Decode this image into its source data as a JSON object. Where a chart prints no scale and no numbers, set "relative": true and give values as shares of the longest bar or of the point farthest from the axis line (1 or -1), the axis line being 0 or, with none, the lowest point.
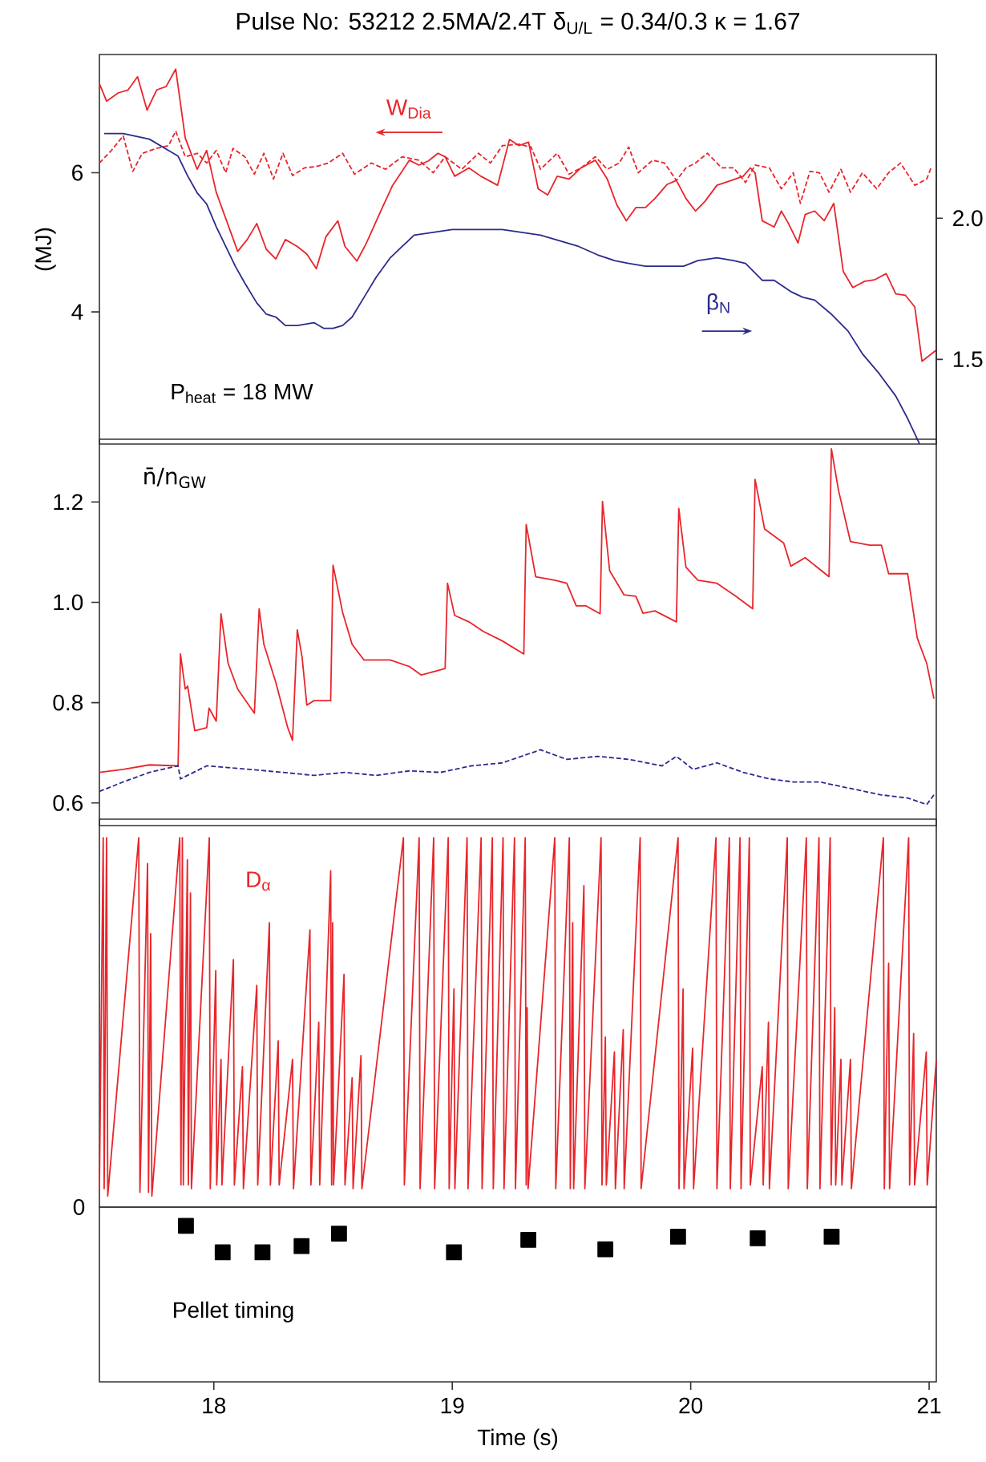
{
  "chart_data": [
    {
      "type": "line",
      "title": "Pulse No: 53212   2.5MA/2.4T  δ$_{U/L}$ = 0.34/0.3  κ = 1.67",
      "ylabel": "(MJ)",
      "xlim": [
        17.52,
        21.03
      ],
      "ylim": [
        2.1,
        7.7
      ],
      "yticks": [
        4,
        6
      ],
      "y2lim": [
        1.2,
        2.58
      ],
      "y2ticks": [
        1.5,
        {
          "value": 2.0,
          "label": "2.0"
        }
      ],
      "tick_labels": "y",
      "annotations": [
        "P$_{heat}$ = 18 MW"
      ],
      "series": [
        {
          "name": "W$_{Dia}$",
          "color": "#e8262b",
          "x": [
            17.52,
            17.55,
            17.6,
            17.64,
            17.68,
            17.72,
            17.76,
            17.8,
            17.84,
            17.88,
            17.93,
            17.97,
            18.01,
            18.1,
            18.14,
            18.18,
            18.22,
            18.26,
            18.3,
            18.35,
            18.39,
            18.43,
            18.47,
            18.52,
            18.55,
            18.6,
            18.64,
            18.7,
            18.75,
            18.82,
            18.86,
            18.9,
            18.94,
            18.97,
            19.01,
            19.07,
            19.12,
            19.19,
            19.24,
            19.28,
            19.32,
            19.36,
            19.4,
            19.44,
            19.49,
            19.54,
            19.6,
            19.65,
            19.69,
            19.73,
            19.77,
            19.81,
            19.85,
            19.9,
            19.94,
            19.98,
            20.02,
            20.06,
            20.11,
            20.17,
            20.22,
            20.25,
            20.27,
            20.3,
            20.35,
            20.38,
            20.41,
            20.45,
            20.48,
            20.52,
            20.56,
            20.6,
            20.64,
            20.68,
            20.73,
            20.77,
            20.82,
            20.86,
            20.9,
            20.94,
            20.97,
            21.03
          ],
          "values": [
            7.28,
            7.03,
            7.15,
            7.19,
            7.38,
            6.9,
            7.19,
            7.24,
            7.49,
            6.5,
            6.05,
            6.32,
            5.72,
            4.87,
            5.04,
            5.27,
            4.9,
            4.76,
            5.04,
            4.94,
            4.83,
            4.62,
            5.08,
            5.31,
            4.94,
            4.73,
            4.99,
            5.45,
            5.82,
            6.18,
            6.11,
            6.17,
            6.28,
            6.23,
            5.95,
            6.07,
            5.95,
            5.82,
            6.48,
            6.39,
            6.44,
            5.77,
            5.68,
            5.95,
            5.91,
            6.07,
            6.18,
            5.91,
            5.54,
            5.31,
            5.5,
            5.5,
            5.63,
            5.83,
            5.89,
            5.63,
            5.45,
            5.59,
            5.82,
            5.89,
            5.95,
            6.07,
            6.0,
            5.31,
            5.22,
            5.45,
            5.27,
            4.99,
            5.4,
            5.45,
            5.31,
            5.56,
            4.58,
            4.35,
            4.44,
            4.46,
            4.55,
            4.26,
            4.24,
            4.07,
            3.29,
            3.45
          ]
        },
        {
          "color": "#e8262b",
          "line_style": "dashed",
          "x": [
            17.52,
            17.57,
            17.62,
            17.66,
            17.7,
            17.76,
            17.81,
            17.84,
            17.88,
            17.93,
            17.97,
            18.01,
            18.05,
            18.08,
            18.13,
            18.17,
            18.21,
            18.25,
            18.29,
            18.33,
            18.38,
            18.43,
            18.48,
            18.54,
            18.59,
            18.66,
            18.72,
            18.79,
            18.86,
            18.92,
            18.97,
            19.04,
            19.11,
            19.16,
            19.21,
            19.28,
            19.33,
            19.37,
            19.44,
            19.49,
            19.54,
            19.6,
            19.65,
            19.7,
            19.74,
            19.78,
            19.84,
            19.89,
            19.94,
            19.98,
            20.02,
            20.07,
            20.13,
            20.18,
            20.23,
            20.27,
            20.33,
            20.38,
            20.43,
            20.46,
            20.5,
            20.54,
            20.58,
            20.63,
            20.67,
            20.72,
            20.78,
            20.83,
            20.88,
            20.94,
            20.99,
            21.01
          ],
          "values": [
            6.14,
            6.32,
            6.53,
            6.02,
            6.28,
            6.35,
            6.39,
            6.6,
            6.23,
            6.28,
            6.14,
            6.32,
            6.0,
            6.35,
            6.23,
            5.98,
            6.28,
            5.91,
            6.28,
            5.96,
            6.07,
            6.09,
            6.14,
            6.28,
            5.98,
            6.14,
            6.05,
            6.23,
            6.18,
            6.0,
            6.23,
            6.05,
            6.28,
            6.14,
            6.39,
            6.41,
            6.37,
            6.05,
            6.28,
            5.98,
            6.07,
            6.23,
            6.05,
            6.14,
            6.37,
            6.0,
            6.18,
            6.14,
            5.89,
            6.07,
            6.14,
            6.28,
            6.07,
            6.07,
            5.86,
            6.11,
            6.07,
            5.77,
            6.0,
            5.56,
            6.02,
            6.0,
            5.72,
            6.05,
            5.72,
            6.0,
            5.77,
            6.0,
            6.14,
            5.82,
            5.91,
            6.09
          ]
        },
        {
          "name": "β$_{N}$",
          "color": "#2b2b8c",
          "axis": "y2",
          "x": [
            17.54,
            17.62,
            17.73,
            17.81,
            17.85,
            17.89,
            17.93,
            17.97,
            18.01,
            18.05,
            18.09,
            18.13,
            18.18,
            18.22,
            18.26,
            18.3,
            18.35,
            18.42,
            18.46,
            18.5,
            18.54,
            18.58,
            18.63,
            18.68,
            18.74,
            18.79,
            18.84,
            18.92,
            19.0,
            19.11,
            19.21,
            19.29,
            19.37,
            19.45,
            19.53,
            19.61,
            19.68,
            19.74,
            19.81,
            19.9,
            19.97,
            20.03,
            20.11,
            20.18,
            20.23,
            20.3,
            20.35,
            20.42,
            20.47,
            20.52,
            20.59,
            20.66,
            20.72,
            20.79,
            20.86,
            20.91,
            20.96
          ],
          "values": [
            2.3,
            2.3,
            2.28,
            2.24,
            2.22,
            2.15,
            2.09,
            2.05,
            1.97,
            1.9,
            1.83,
            1.77,
            1.7,
            1.66,
            1.65,
            1.62,
            1.62,
            1.63,
            1.61,
            1.61,
            1.62,
            1.65,
            1.72,
            1.79,
            1.86,
            1.9,
            1.94,
            1.95,
            1.96,
            1.96,
            1.96,
            1.95,
            1.94,
            1.92,
            1.9,
            1.87,
            1.85,
            1.84,
            1.83,
            1.83,
            1.83,
            1.85,
            1.86,
            1.85,
            1.84,
            1.78,
            1.78,
            1.74,
            1.72,
            1.71,
            1.66,
            1.6,
            1.52,
            1.45,
            1.37,
            1.29,
            1.2
          ]
        }
      ]
    },
    {
      "type": "line",
      "xlim": [
        17.52,
        21.03
      ],
      "ylim": [
        0.555,
        1.325
      ],
      "yticks": [
        0.6,
        0.8,
        {
          "value": 1.0,
          "label": "1.0"
        },
        1.2
      ],
      "tick_labels": "y",
      "annotations": [
        "n̄/n$_{GW}$"
      ],
      "series": [
        {
          "color": "#e8262b",
          "x": [
            17.52,
            17.62,
            17.73,
            17.85,
            17.86,
            17.88,
            17.89,
            17.92,
            17.97,
            17.98,
            18.01,
            18.03,
            18.06,
            18.1,
            18.17,
            18.19,
            18.21,
            18.26,
            18.31,
            18.33,
            18.35,
            18.37,
            18.39,
            18.42,
            18.49,
            18.5,
            18.54,
            18.58,
            18.63,
            18.74,
            18.82,
            18.87,
            18.97,
            18.98,
            19.01,
            19.07,
            19.13,
            19.21,
            19.3,
            19.31,
            19.35,
            19.43,
            19.48,
            19.52,
            19.56,
            19.62,
            19.63,
            19.66,
            19.72,
            19.77,
            19.8,
            19.85,
            19.94,
            19.95,
            19.98,
            20.03,
            20.11,
            20.19,
            20.26,
            20.27,
            20.31,
            20.39,
            20.42,
            20.48,
            20.58,
            20.59,
            20.62,
            20.67,
            20.75,
            20.8,
            20.83,
            20.91,
            20.95,
            20.99,
            21.02
          ],
          "values": [
            0.661,
            0.667,
            0.676,
            0.674,
            0.897,
            0.827,
            0.833,
            0.744,
            0.75,
            0.789,
            0.763,
            0.977,
            0.878,
            0.827,
            0.779,
            0.987,
            0.916,
            0.84,
            0.75,
            0.725,
            0.945,
            0.891,
            0.795,
            0.804,
            0.804,
            1.074,
            0.98,
            0.916,
            0.885,
            0.885,
            0.872,
            0.855,
            0.868,
            1.038,
            0.974,
            0.961,
            0.942,
            0.923,
            0.897,
            1.155,
            1.051,
            1.044,
            1.038,
            0.993,
            0.993,
            0.977,
            1.201,
            1.063,
            1.015,
            1.012,
            0.978,
            0.983,
            0.961,
            1.187,
            1.07,
            1.044,
            1.038,
            1.012,
            0.987,
            1.245,
            1.146,
            1.118,
            1.072,
            1.089,
            1.051,
            1.306,
            1.223,
            1.121,
            1.114,
            1.114,
            1.057,
            1.057,
            0.929,
            0.878,
            0.808
          ]
        },
        {
          "color": "#2b2b8c",
          "line_style": "dashed",
          "x": [
            17.52,
            17.62,
            17.73,
            17.85,
            17.86,
            17.97,
            18.15,
            18.29,
            18.42,
            18.55,
            18.68,
            18.82,
            18.95,
            19.08,
            19.21,
            19.29,
            19.37,
            19.48,
            19.61,
            19.74,
            19.88,
            19.94,
            20.01,
            20.11,
            20.22,
            20.33,
            20.43,
            20.54,
            20.67,
            20.8,
            20.91,
            20.99,
            21.02
          ],
          "values": [
            0.623,
            0.642,
            0.661,
            0.674,
            0.648,
            0.674,
            0.667,
            0.661,
            0.655,
            0.661,
            0.655,
            0.664,
            0.661,
            0.674,
            0.68,
            0.693,
            0.706,
            0.687,
            0.693,
            0.687,
            0.674,
            0.693,
            0.667,
            0.68,
            0.661,
            0.648,
            0.642,
            0.642,
            0.629,
            0.616,
            0.61,
            0.597,
            0.616
          ]
        }
      ]
    },
    {
      "type": "line",
      "relative": true,
      "xlim": [
        17.52,
        21.03
      ],
      "tick_labels": false,
      "annotations": [
        "0"
      ],
      "series": [
        {
          "name": "D$_{α}$",
          "color": "#e8262b",
          "x": [
            17.52,
            17.536,
            17.54,
            17.55,
            17.555,
            17.685,
            17.69,
            17.722,
            17.726,
            17.735,
            17.74,
            17.857,
            17.862,
            17.868,
            17.872,
            17.889,
            17.893,
            17.902,
            17.906,
            17.981,
            17.985,
            18.008,
            18.012,
            18.03,
            18.034,
            18.082,
            18.086,
            18.12,
            18.124,
            18.18,
            18.184,
            18.233,
            18.237,
            18.27,
            18.274,
            18.33,
            18.334,
            18.403,
            18.407,
            18.44,
            18.444,
            18.49,
            18.494,
            18.498,
            18.502,
            18.546,
            18.55,
            18.58,
            18.584,
            18.617,
            18.621,
            18.795,
            18.799,
            18.861,
            18.865,
            18.922,
            18.926,
            18.983,
            18.987,
            19.007,
            19.011,
            19.062,
            19.066,
            19.121,
            19.125,
            19.168,
            19.172,
            19.213,
            19.217,
            19.261,
            19.265,
            19.306,
            19.31,
            19.314,
            19.318,
            19.43,
            19.434,
            19.491,
            19.495,
            19.505,
            19.509,
            19.552,
            19.556,
            19.624,
            19.628,
            19.642,
            19.646,
            19.68,
            19.684,
            19.717,
            19.721,
            19.788,
            19.792,
            19.947,
            19.951,
            19.968,
            19.972,
            20.008,
            20.012,
            20.106,
            20.11,
            20.162,
            20.166,
            20.207,
            20.211,
            20.246,
            20.25,
            20.3,
            20.304,
            20.326,
            20.33,
            20.405,
            20.409,
            20.485,
            20.489,
            20.538,
            20.542,
            20.585,
            20.589,
            20.604,
            20.608,
            20.63,
            20.634,
            20.67,
            20.674,
            20.808,
            20.812,
            20.83,
            20.834,
            20.914,
            20.918,
            20.935,
            20.939,
            20.988,
            20.992,
            21.03
          ],
          "values": [
            0.05,
            1.0,
            0.05,
            1.0,
            0.03,
            1.0,
            0.04,
            0.93,
            0.04,
            0.74,
            0.03,
            1.0,
            0.06,
            1.0,
            0.06,
            0.94,
            0.06,
            0.85,
            0.05,
            1.0,
            0.05,
            0.64,
            0.06,
            0.4,
            0.06,
            0.67,
            0.06,
            0.38,
            0.05,
            0.6,
            0.06,
            0.77,
            0.06,
            0.45,
            0.06,
            0.4,
            0.05,
            0.75,
            0.06,
            0.5,
            0.06,
            0.91,
            0.06,
            0.77,
            0.06,
            0.63,
            0.06,
            0.35,
            0.05,
            0.41,
            0.05,
            1.0,
            0.06,
            1.0,
            0.05,
            1.0,
            0.05,
            1.0,
            0.05,
            0.59,
            0.05,
            1.0,
            0.05,
            1.0,
            0.05,
            1.0,
            0.05,
            1.0,
            0.05,
            1.0,
            0.05,
            1.0,
            0.06,
            0.54,
            0.05,
            1.0,
            0.05,
            1.0,
            0.05,
            0.77,
            0.05,
            0.87,
            0.05,
            1.0,
            0.06,
            0.46,
            0.06,
            0.42,
            0.05,
            0.48,
            0.05,
            1.0,
            0.05,
            1.0,
            0.05,
            0.59,
            0.05,
            0.43,
            0.05,
            1.0,
            0.05,
            1.0,
            0.05,
            1.0,
            0.05,
            1.0,
            0.06,
            0.38,
            0.06,
            0.5,
            0.05,
            1.0,
            0.05,
            1.0,
            0.05,
            1.0,
            0.05,
            1.0,
            0.06,
            0.54,
            0.06,
            0.4,
            0.06,
            0.4,
            0.05,
            1.0,
            0.05,
            0.66,
            0.05,
            1.0,
            0.06,
            0.47,
            0.06,
            0.42,
            0.06,
            0.4
          ]
        }
      ]
    },
    {
      "type": "scatter",
      "relative": true,
      "marker": "square",
      "color": "#000000",
      "xlim": [
        17.52,
        21.03
      ],
      "xticks": [
        18,
        19,
        20,
        21
      ],
      "xlabel": "Time (s)",
      "tick_labels": "x",
      "annotations": [
        "Pellet timing"
      ],
      "x": [
        17.883,
        18.037,
        18.204,
        18.368,
        18.525,
        19.007,
        19.319,
        19.642,
        19.947,
        20.281,
        20.591
      ],
      "values": [
        1.0,
        0.83,
        0.83,
        0.87,
        0.95,
        0.83,
        0.91,
        0.85,
        0.93,
        0.92,
        0.93
      ]
    }
  ]
}
